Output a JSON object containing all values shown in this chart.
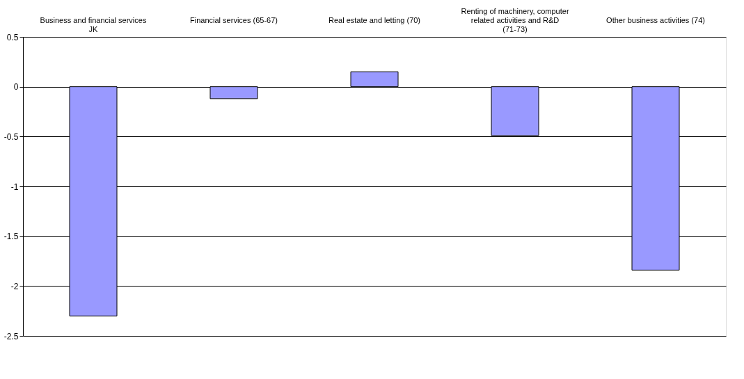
{
  "chart_data": {
    "type": "bar",
    "categories": [
      "Business and financial services JK",
      "Financial services (65-67)",
      "Real estate and letting (70)",
      "Renting of machinery, computer related activities and R&D (71-73)",
      "Other business activities (74)"
    ],
    "values": [
      -2.3,
      -0.12,
      0.15,
      -0.49,
      -1.84
    ],
    "color": "#9999ff",
    "ylim": [
      -2.5,
      0.5
    ],
    "yticks": [
      -2.5,
      -2,
      -1.5,
      -1,
      -0.5,
      0,
      0.5
    ],
    "grid": "y"
  }
}
